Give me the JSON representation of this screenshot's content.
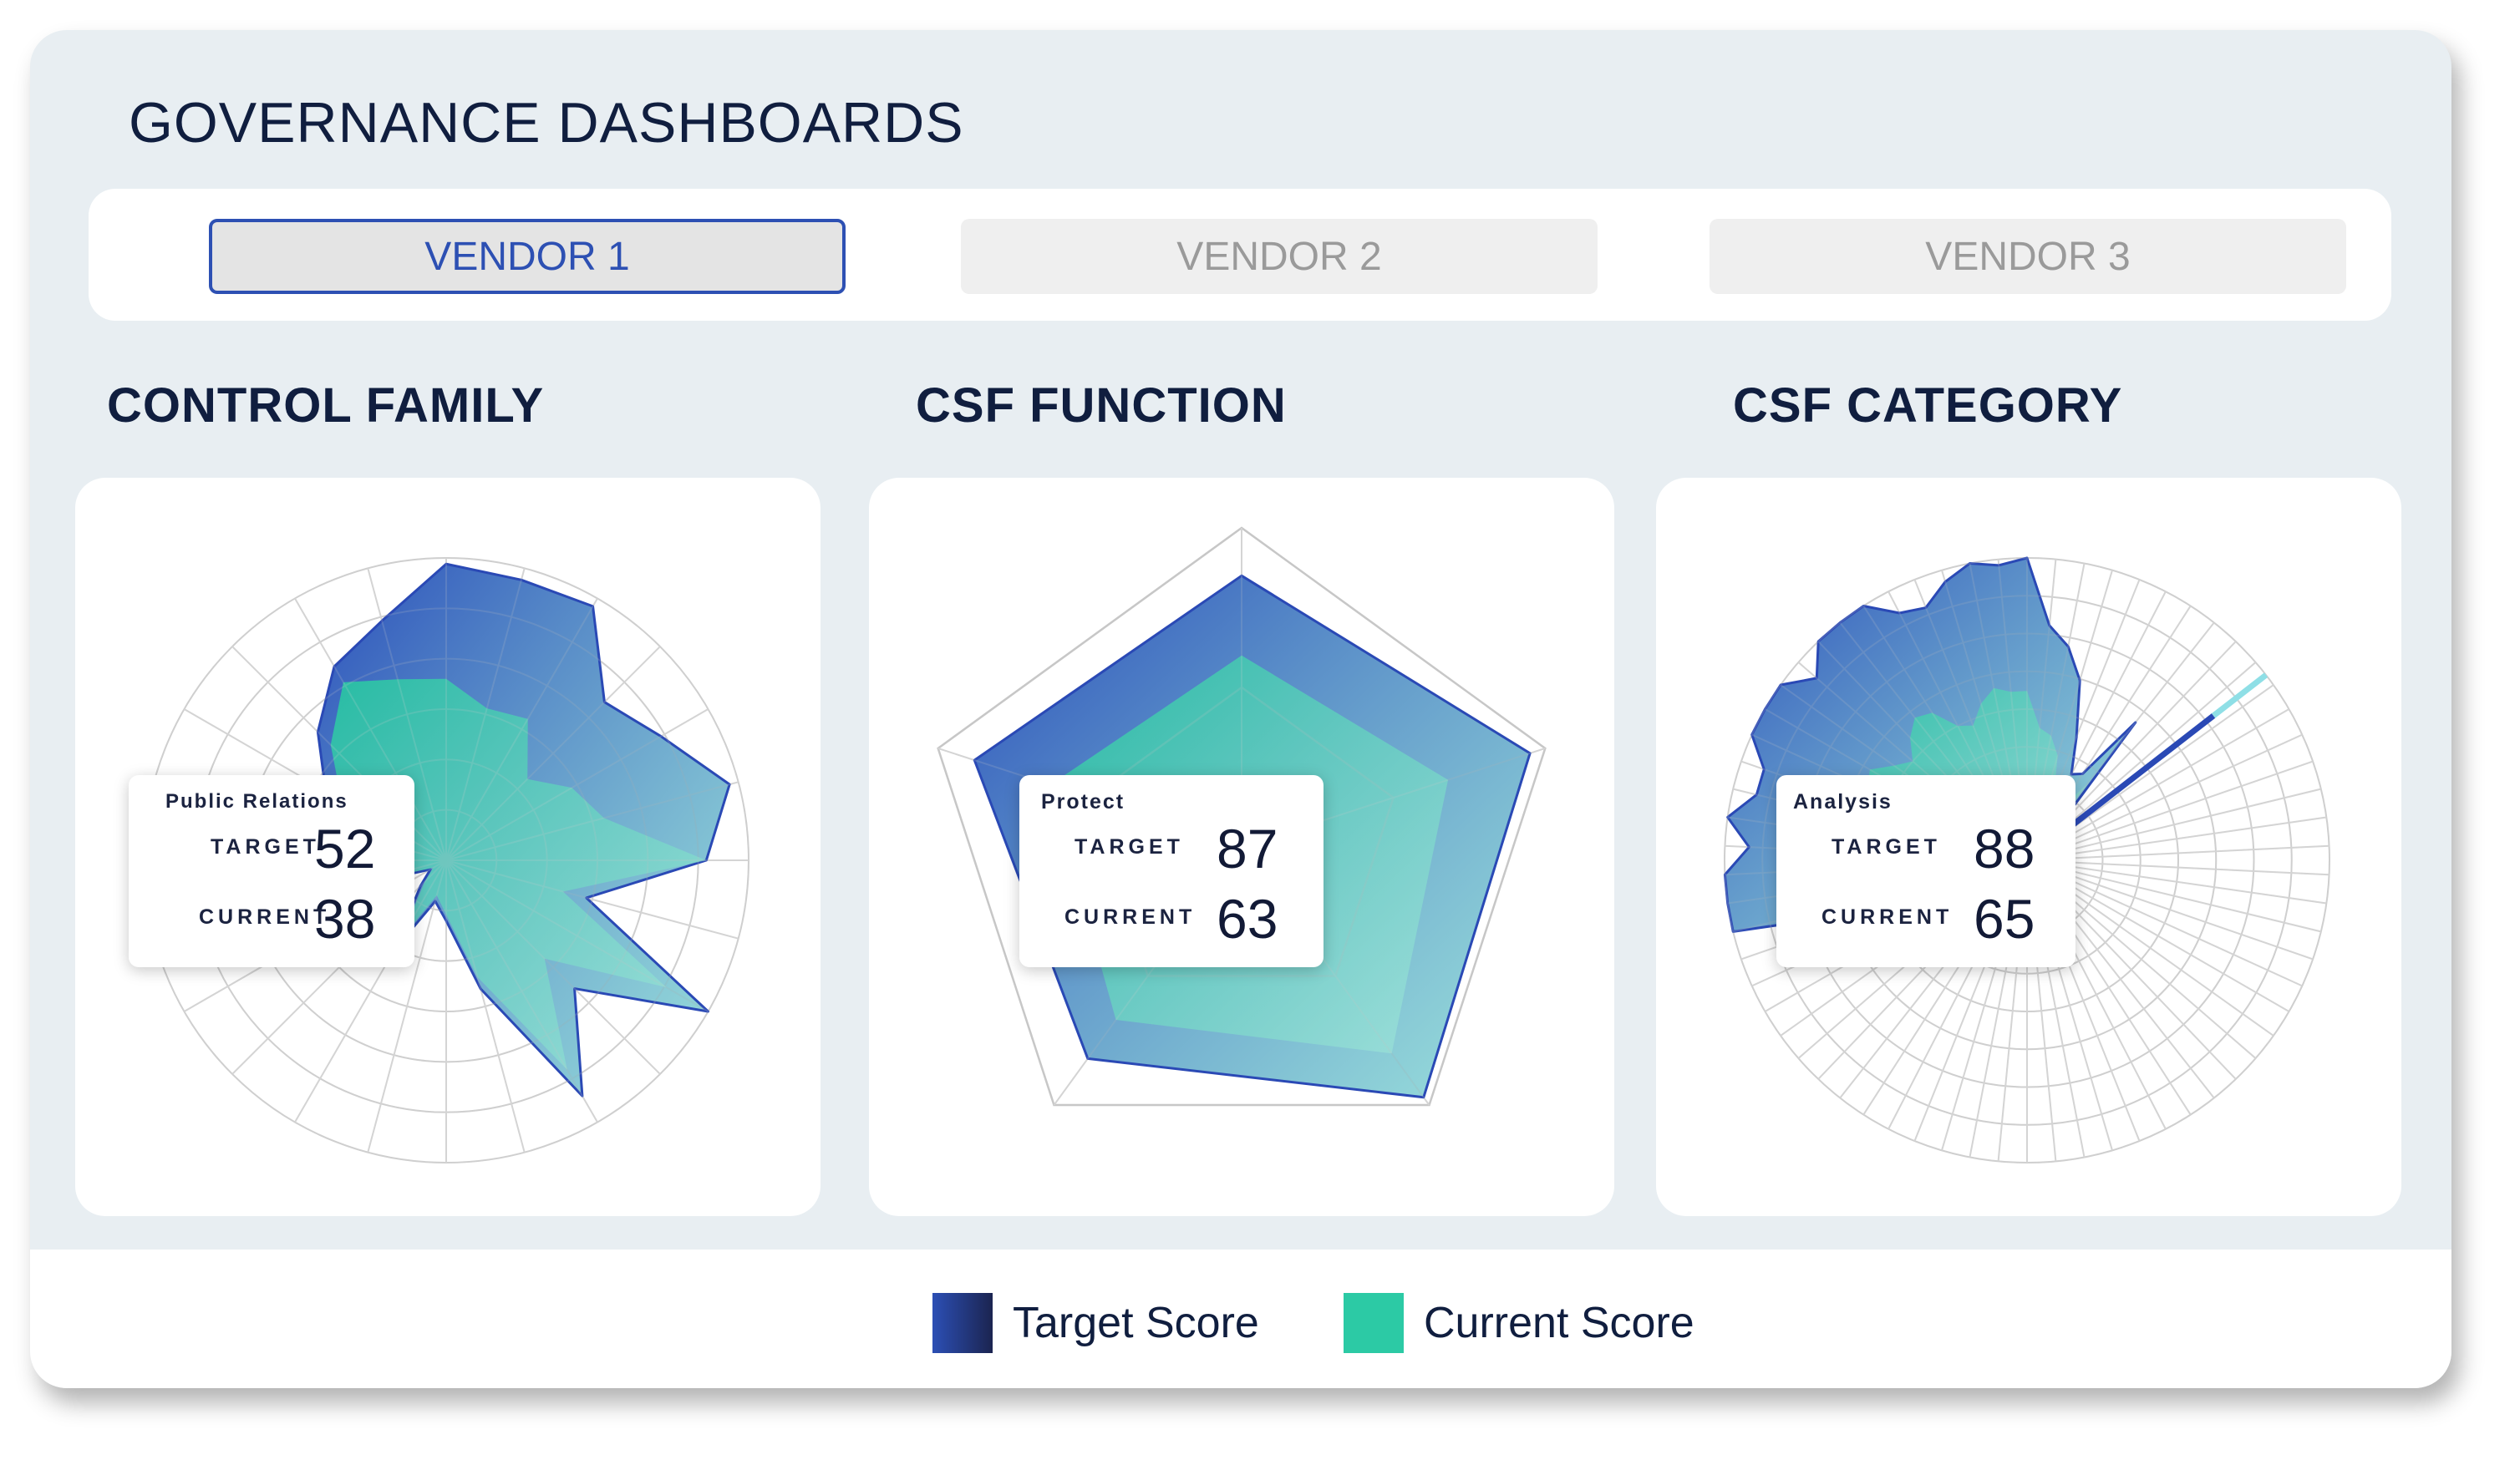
{
  "header": {
    "title": "GOVERNANCE DASHBOARDS"
  },
  "tabs": [
    {
      "label": "VENDOR 1",
      "active": true
    },
    {
      "label": "VENDOR 2",
      "active": false
    },
    {
      "label": "VENDOR 3",
      "active": false
    }
  ],
  "colors": {
    "target": "#2f5bbf",
    "target_edge": "#2a49b5",
    "current": "#2ccaa5",
    "title_text": "#101e3f",
    "active_tab": "#2d50b3"
  },
  "tooltip_keys": {
    "target": "TARGET",
    "current": "CURRENT"
  },
  "chart_data": [
    {
      "type": "radar",
      "title": "CONTROL FAMILY",
      "scale": [
        0,
        100
      ],
      "tooltip": {
        "label": "Public Relations",
        "target": 52,
        "current": 38
      },
      "series": [
        {
          "name": "Target Score",
          "values": [
            98,
            96,
            97,
            74,
            82,
            97,
            86,
            48,
            100,
            60,
            90,
            44,
            20,
            14,
            34,
            12,
            6,
            38,
            38,
            44,
            46,
            60,
            74,
            82
          ]
        },
        {
          "name": "Current Score",
          "values": [
            60,
            52,
            54,
            38,
            48,
            54,
            86,
            40,
            84,
            46,
            80,
            40,
            18,
            12,
            30,
            10,
            5,
            30,
            30,
            38,
            40,
            54,
            68,
            62
          ]
        }
      ]
    },
    {
      "type": "radar",
      "title": "CSF FUNCTION",
      "scale": [
        0,
        100
      ],
      "tooltip": {
        "label": "Protect",
        "target": 87,
        "current": 63
      },
      "series": [
        {
          "name": "Target Score",
          "values": [
            85,
            95,
            97,
            82,
            88
          ]
        },
        {
          "name": "Current Score",
          "values": [
            60,
            68,
            80,
            67,
            63
          ]
        }
      ]
    },
    {
      "type": "radar",
      "title": "CSF CATEGORY",
      "scale": [
        0,
        100
      ],
      "tooltip": {
        "label": "Analysis",
        "target": 88,
        "current": 65
      },
      "series": [
        {
          "name": "Target Score",
          "values": [
            100,
            78,
            72,
            62,
            44,
            32,
            34,
            58,
            14,
            0,
            0,
            0,
            0,
            0,
            0,
            0,
            0,
            0,
            0,
            0,
            0,
            0,
            0,
            0,
            0,
            0,
            0,
            0,
            0,
            0,
            0,
            0,
            0,
            0,
            0,
            0,
            0,
            0,
            0,
            0,
            0,
            0,
            0,
            0,
            0,
            0,
            50,
            100,
            100,
            100,
            92,
            100,
            92,
            92,
            100,
            100,
            100,
            92,
            100,
            100,
            100,
            92,
            90,
            96,
            100,
            98
          ]
        },
        {
          "name": "Current Score",
          "values": [
            56,
            44,
            42,
            36,
            24,
            20,
            20,
            32,
            8,
            0,
            0,
            0,
            0,
            0,
            0,
            0,
            0,
            0,
            0,
            0,
            0,
            0,
            0,
            0,
            0,
            0,
            0,
            0,
            0,
            0,
            0,
            0,
            0,
            0,
            0,
            0,
            0,
            0,
            0,
            0,
            0,
            0,
            0,
            0,
            0,
            0,
            30,
            60,
            64,
            58,
            50,
            56,
            48,
            52,
            58,
            60,
            54,
            50,
            56,
            60,
            58,
            50,
            48,
            54,
            58,
            56
          ]
        }
      ]
    }
  ],
  "legend": [
    {
      "label": "Target Score"
    },
    {
      "label": "Current Score"
    }
  ]
}
